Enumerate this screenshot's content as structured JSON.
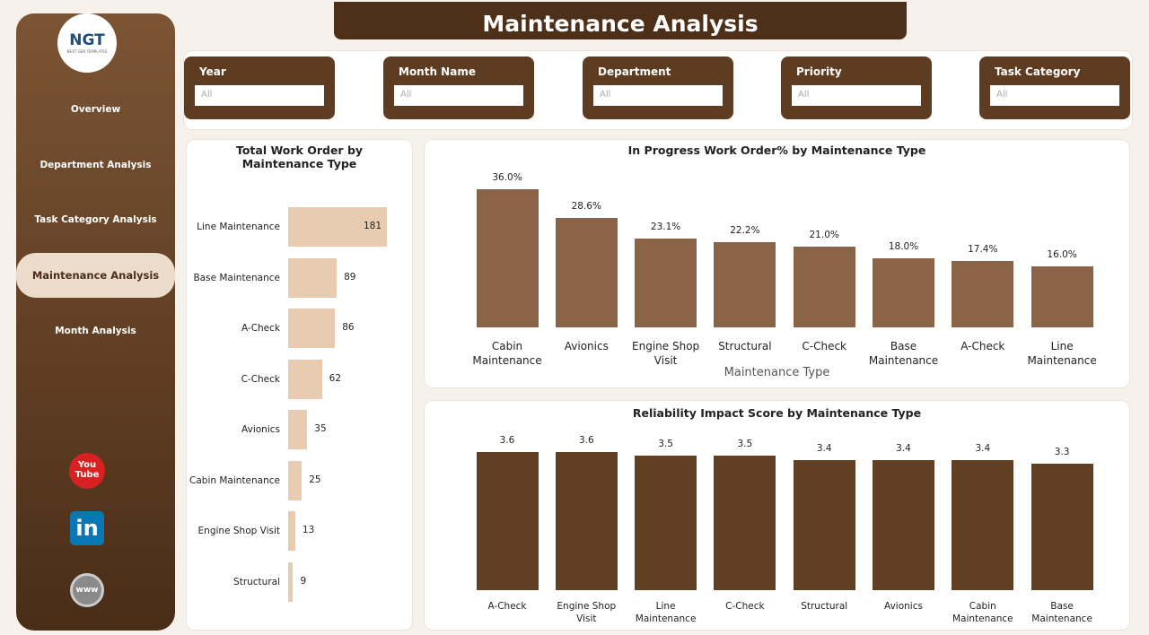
{
  "header": {
    "title": "Maintenance Analysis"
  },
  "logo": {
    "text": "NGT",
    "subtext": "NEXT GEN TEMPLATES"
  },
  "nav": [
    "Overview",
    "Department Analysis",
    "Task Category Analysis",
    "Maintenance Analysis",
    "Month Analysis"
  ],
  "social": {
    "youtube": [
      "You",
      "Tube"
    ],
    "linkedin": "in",
    "web": "www"
  },
  "filters": [
    {
      "label": "Year",
      "value": "All"
    },
    {
      "label": "Month Name",
      "value": "All"
    },
    {
      "label": "Department",
      "value": "All"
    },
    {
      "label": "Priority",
      "value": "All"
    },
    {
      "label": "Task Category",
      "value": "All"
    }
  ],
  "chart_data": [
    {
      "type": "bar",
      "horizontal": true,
      "title": "Total Work Order by Maintenance Type",
      "color": "#e8cbb0",
      "categories": [
        "Line Maintenance",
        "Base Maintenance",
        "A-Check",
        "C-Check",
        "Avionics",
        "Cabin Maintenance",
        "Engine Shop Visit",
        "Structural"
      ],
      "values": [
        181,
        89,
        86,
        62,
        35,
        25,
        13,
        9
      ]
    },
    {
      "type": "bar",
      "title": "In Progress Work Order% by Maintenance Type",
      "color": "#8b6448",
      "x_label": "Maintenance Type",
      "categories": [
        "Cabin Maintenance",
        "Avionics",
        "Engine Shop Visit",
        "Structural",
        "C-Check",
        "Base Maintenance",
        "A-Check",
        "Line Maintenance"
      ],
      "values": [
        36.0,
        28.6,
        23.1,
        22.2,
        21.0,
        18.0,
        17.4,
        16.0
      ],
      "value_labels": [
        "36.0%",
        "28.6%",
        "23.1%",
        "22.2%",
        "21.0%",
        "18.0%",
        "17.4%",
        "16.0%"
      ]
    },
    {
      "type": "bar",
      "title": "Reliability Impact Score by Maintenance Type",
      "color": "#603f22",
      "categories": [
        "A-Check",
        "Engine Shop Visit",
        "Line Maintenance",
        "C-Check",
        "Structural",
        "Avionics",
        "Cabin Maintenance",
        "Base Maintenance"
      ],
      "values": [
        3.6,
        3.6,
        3.5,
        3.5,
        3.4,
        3.4,
        3.4,
        3.3
      ]
    }
  ]
}
